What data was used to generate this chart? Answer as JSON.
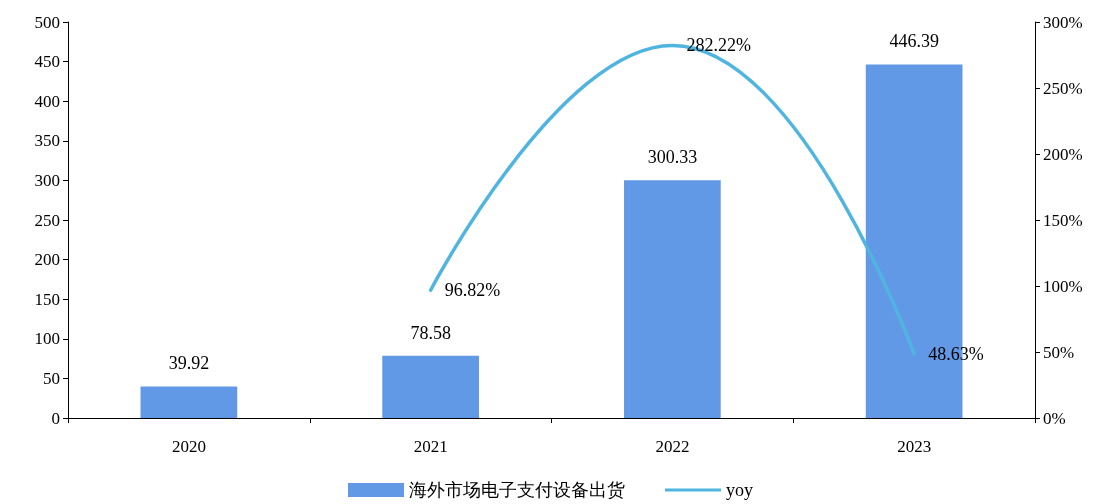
{
  "chart_data": {
    "type": "bar",
    "categories": [
      "2020",
      "2021",
      "2022",
      "2023"
    ],
    "series": [
      {
        "name": "海外市场电子支付设备出货",
        "color": "#6199e6",
        "values": [
          39.92,
          78.58,
          300.33,
          446.39
        ]
      },
      {
        "name": "yoy",
        "type": "line",
        "axis": "y2",
        "color": "#4fb5e0",
        "values": [
          null,
          96.82,
          282.22,
          48.63
        ],
        "value_labels": [
          null,
          "96.82%",
          "282.22%",
          "48.63%"
        ]
      }
    ],
    "ylim": [
      0,
      500
    ],
    "yticks": [
      0,
      50,
      100,
      150,
      200,
      250,
      300,
      350,
      400,
      450,
      500
    ],
    "y2lim": [
      0,
      300
    ],
    "y2ticks": [
      {
        "value": 0,
        "label": "0%"
      },
      {
        "value": 50,
        "label": "50%"
      },
      {
        "value": 100,
        "label": "100%"
      },
      {
        "value": 150,
        "label": "150%"
      },
      {
        "value": 200,
        "label": "200%"
      },
      {
        "value": 250,
        "label": "250%"
      },
      {
        "value": 300,
        "label": "300%"
      }
    ],
    "data_labels": true,
    "grid": false,
    "legend": "bottom",
    "marker": "none",
    "line_style": "solid"
  }
}
